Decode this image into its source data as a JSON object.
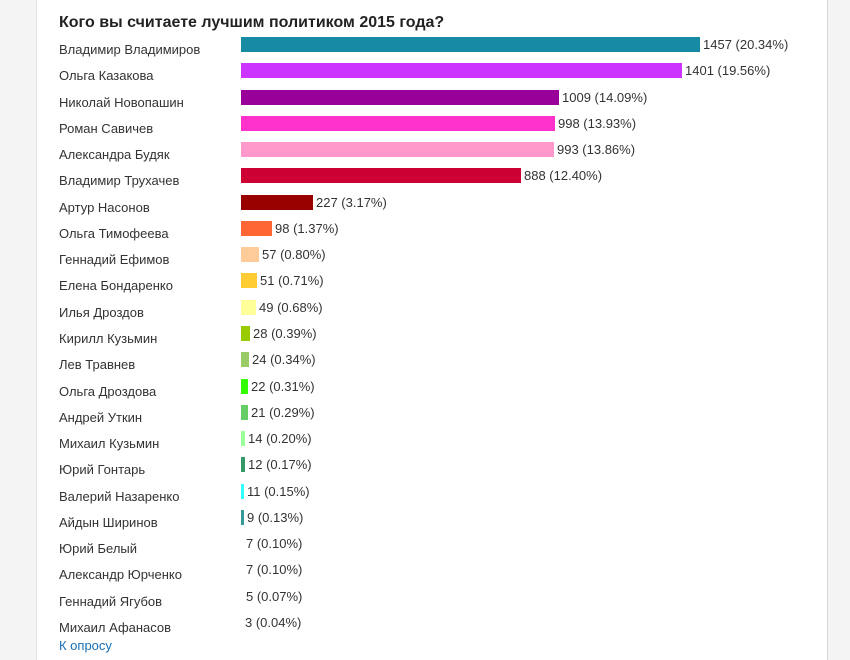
{
  "title": "Кого вы считаете лучшим политиком 2015 года?",
  "back_link": "К опросу",
  "chart_data": {
    "type": "bar",
    "orientation": "horizontal",
    "title": "Кого вы считаете лучшим политиком 2015 года?",
    "categories": [
      "Владимир Владимиров",
      "Ольга Казакова",
      "Николай Новопашин",
      "Роман Савичев",
      "Александра Будяк",
      "Владимир Трухачев",
      "Артур Насонов",
      "Ольга Тимофеева",
      "Геннадий Ефимов",
      "Елена Бондаренко",
      "Илья Дроздов",
      "Кирилл Кузьмин",
      "Лев Травнев",
      "Ольга Дроздова",
      "Андрей Уткин",
      "Михаил Кузьмин",
      "Юрий Гонтарь",
      "Валерий Назаренко",
      "Айдын Ширинов",
      "Юрий Белый",
      "Александр Юрченко",
      "Геннадий Ягубов",
      "Михаил Афанасов"
    ],
    "values": [
      1457,
      1401,
      1009,
      998,
      993,
      888,
      227,
      98,
      57,
      51,
      49,
      28,
      24,
      22,
      21,
      14,
      12,
      11,
      9,
      7,
      7,
      5,
      3
    ],
    "labels": [
      "1457 (20.34%)",
      "1401 (19.56%)",
      "1009 (14.09%)",
      "998 (13.93%)",
      "993 (13.86%)",
      "888 (12.40%)",
      "227 (3.17%)",
      "98 (1.37%)",
      "57 (0.80%)",
      "51 (0.71%)",
      "49 (0.68%)",
      "28 (0.39%)",
      "24 (0.34%)",
      "22 (0.31%)",
      "21 (0.29%)",
      "14 (0.20%)",
      "12 (0.17%)",
      "11 (0.15%)",
      "9 (0.13%)",
      "7 (0.10%)",
      "7 (0.10%)",
      "5 (0.07%)",
      "3 (0.04%)"
    ],
    "colors": [
      "#178ba3",
      "#cc33ff",
      "#990099",
      "#ff33cc",
      "#ff99cc",
      "#cc0033",
      "#990000",
      "#ff6633",
      "#ffcc99",
      "#ffcc33",
      "#ffff99",
      "#99cc00",
      "#99cc66",
      "#33ff00",
      "#66cc66",
      "#99ff99",
      "#339966",
      "#33ffff",
      "#339999",
      "#ffffff",
      "#ffffff",
      "#ffffff",
      "#ffffff"
    ],
    "xlim": [
      0,
      1457
    ],
    "grid": false,
    "legend": "none"
  }
}
